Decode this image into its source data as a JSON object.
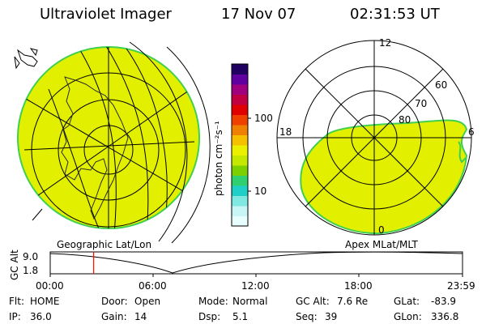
{
  "header": {
    "instrument": "Ultraviolet Imager",
    "date": "17 Nov 07",
    "time": "02:31:53 UT"
  },
  "panels": {
    "left_label": "Geographic Lat/Lon",
    "right_label": "Apex MLat/MLT",
    "right_hour_labels": {
      "top": "12",
      "left": "18",
      "right": "6",
      "bottom": "0"
    },
    "right_lat_labels": [
      "60",
      "70",
      "80"
    ]
  },
  "colorbar": {
    "unit_label": "photon cm⁻²s⁻¹",
    "ticks": [
      "100",
      "10"
    ],
    "colors": [
      "#e8ffff",
      "#c8f5f5",
      "#7fe8e0",
      "#20d0c8",
      "#30d070",
      "#7ad000",
      "#c4e800",
      "#eaf000",
      "#f5c000",
      "#f08000",
      "#f04000",
      "#e00000",
      "#c00040",
      "#a00080",
      "#6000a0",
      "#200060"
    ]
  },
  "altitude_strip": {
    "ylabel": "GC Alt",
    "ytick_top": "9.0",
    "ytick_bottom": "1.8",
    "xticks": [
      "00:00",
      "06:00",
      "12:00",
      "18:00",
      "23:59"
    ],
    "marker_time_hours": 2.53,
    "marker_color": "#ff0000"
  },
  "info_rows": [
    [
      {
        "label": "Flt:",
        "value": "HOME"
      },
      {
        "label": "Door:",
        "value": "Open"
      },
      {
        "label": "Mode:",
        "value": "Normal"
      },
      {
        "label": "GC Alt:",
        "value": "7.6 Re"
      },
      {
        "label": "GLat:",
        "value": "-83.9"
      }
    ],
    [
      {
        "label": "IP:",
        "value": "36.0"
      },
      {
        "label": "Gain:",
        "value": "14"
      },
      {
        "label": "Dsp:",
        "value": "5.1"
      },
      {
        "label": "Seq:",
        "value": "39"
      },
      {
        "label": "GLon:",
        "value": "336.8"
      }
    ]
  ],
  "colors": {
    "aurora_fill": "#e2f000",
    "aurora_edge": "#40d050",
    "line": "#000000"
  }
}
